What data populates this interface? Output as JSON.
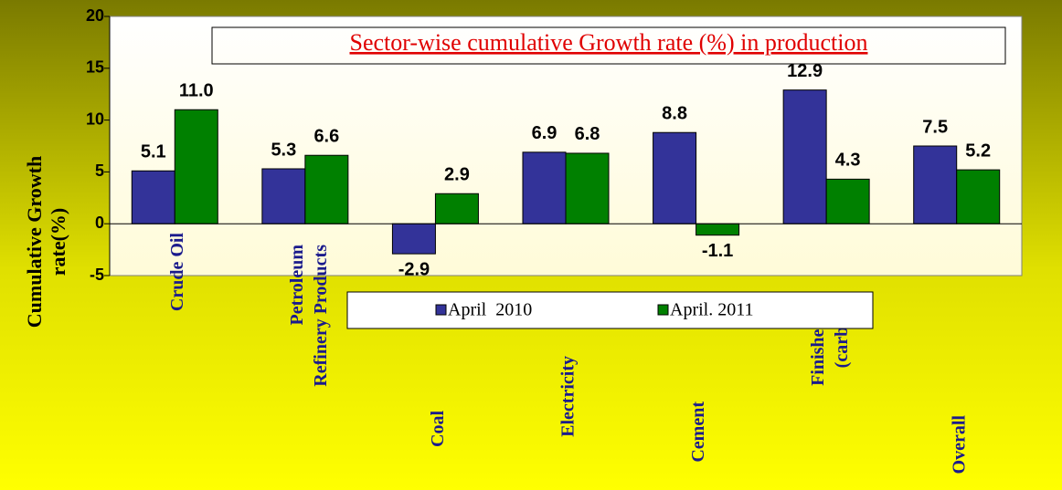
{
  "chart_data": {
    "type": "bar",
    "title": "Sector-wise cumulative Growth rate (%) in production",
    "ylabel": [
      "Cumulative Growth",
      "rate(%)"
    ],
    "categories": [
      "Crude Oil",
      "Petroleum Refinery Products",
      "Coal",
      "Electricity",
      "Cement",
      "Finished st (carbon)",
      "Overall"
    ],
    "series": [
      {
        "name": "April  2010",
        "color": "#333399",
        "values": [
          5.1,
          5.3,
          -2.9,
          6.9,
          8.8,
          12.9,
          7.5
        ]
      },
      {
        "name": "April. 2011",
        "color": "#008000",
        "values": [
          11.0,
          6.6,
          2.9,
          6.8,
          -1.1,
          4.3,
          5.2
        ],
        "value_labels": [
          "11.0",
          "6.6",
          "2.9",
          "6.8",
          "-1.1",
          "4.3",
          "5.2"
        ]
      }
    ],
    "ylim": [
      -5,
      20
    ],
    "yticks": [
      -5,
      0,
      5,
      10,
      15,
      20
    ],
    "legend": "bottom"
  }
}
